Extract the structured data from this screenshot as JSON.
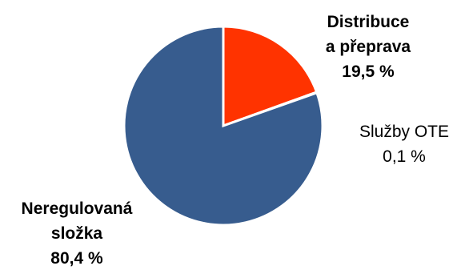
{
  "chart_data": {
    "type": "pie",
    "start_angle_deg": 0,
    "direction": "clockwise",
    "slices": [
      {
        "key": "distribuce",
        "name_lines": [
          "Distribuce",
          "a přeprava"
        ],
        "value": 19.5,
        "value_label": "19,5 %",
        "color": "#FF3300",
        "label_bold": true
      },
      {
        "key": "ote",
        "name_lines": [
          "Služby OTE"
        ],
        "value": 0.1,
        "value_label": "0,1 %",
        "color": "#375C8E",
        "label_bold": false
      },
      {
        "key": "neregulovana",
        "name_lines": [
          "Neregulovaná",
          "složka"
        ],
        "value": 80.4,
        "value_label": "80,4 %",
        "color": "#375C8E",
        "label_bold": true
      }
    ],
    "legend": "none"
  }
}
